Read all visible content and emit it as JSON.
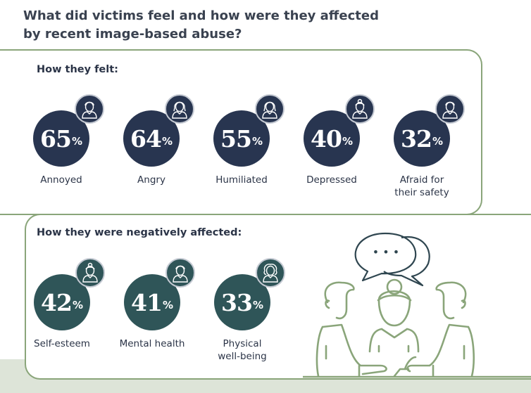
{
  "title": "What did victims feel and how were they affected by recent image-based abuse?",
  "colors": {
    "felt": "#283550",
    "affected": "#2f5558",
    "border": "#8aa57a",
    "band": "#dde4d8",
    "illustration": "#8aa57a",
    "speech": "#2f4650"
  },
  "chart_data": [
    {
      "type": "infographic-stats",
      "title": "How they felt:",
      "unit": "%",
      "categories": [
        "Annoyed",
        "Angry",
        "Humiliated",
        "Depressed",
        "Afraid for their safety"
      ],
      "values": [
        65,
        64,
        55,
        40,
        32
      ],
      "icons": [
        "man-icon",
        "woman-icon",
        "woman-icon",
        "woman-bun-icon",
        "man-icon"
      ]
    },
    {
      "type": "infographic-stats",
      "title": "How they were negatively affected:",
      "unit": "%",
      "categories": [
        "Self-esteem",
        "Mental health",
        "Physical well-being"
      ],
      "values": [
        42,
        41,
        33
      ],
      "icons": [
        "woman-bun-icon",
        "man-icon",
        "curly-hair-person-icon"
      ]
    }
  ],
  "speech_text": "• • •"
}
